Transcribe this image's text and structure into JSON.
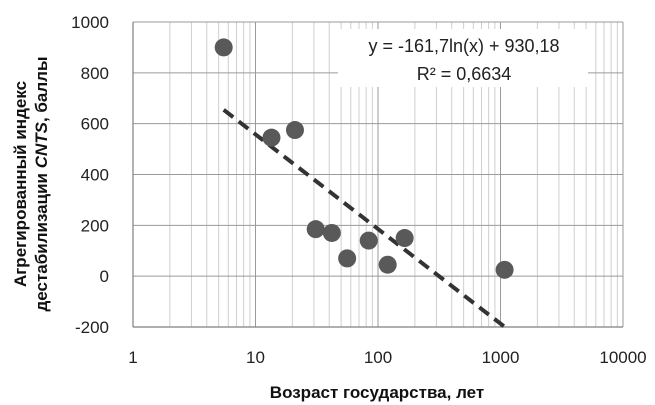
{
  "chart_data": {
    "type": "scatter",
    "xscale": "log",
    "xlim": [
      1,
      10000
    ],
    "ylim": [
      -200,
      1000
    ],
    "xticks": [
      1,
      10,
      100,
      1000,
      10000
    ],
    "xtick_labels": [
      "1",
      "10",
      "100",
      "1000",
      "10000"
    ],
    "yticks": [
      -200,
      0,
      200,
      400,
      600,
      800,
      1000
    ],
    "ytick_labels": [
      "-200",
      "0",
      "200",
      "400",
      "600",
      "800",
      "1000"
    ],
    "xlabel": "Возраст государства, лет",
    "ylabel_line1": "Агрегированный индекс",
    "ylabel_line2_prefix": "дестабилизации ",
    "ylabel_line2_italic": "CNTS",
    "ylabel_line2_suffix": ", баллы",
    "grid": true,
    "marker_color": "#595959",
    "trend_color": "#333333",
    "points": [
      {
        "x": 5.5,
        "y": 900
      },
      {
        "x": 13.5,
        "y": 545
      },
      {
        "x": 21,
        "y": 575
      },
      {
        "x": 31,
        "y": 185
      },
      {
        "x": 42,
        "y": 170
      },
      {
        "x": 56,
        "y": 70
      },
      {
        "x": 84,
        "y": 140
      },
      {
        "x": 120,
        "y": 45
      },
      {
        "x": 165,
        "y": 150
      },
      {
        "x": 1080,
        "y": 25
      }
    ],
    "trendline": {
      "type": "log",
      "a": -161.7,
      "b": 930.18,
      "x_range": [
        5.5,
        1080
      ],
      "equation": "y = -161,7ln(x) + 930,18",
      "r2_label": "R² = 0,6634"
    }
  }
}
